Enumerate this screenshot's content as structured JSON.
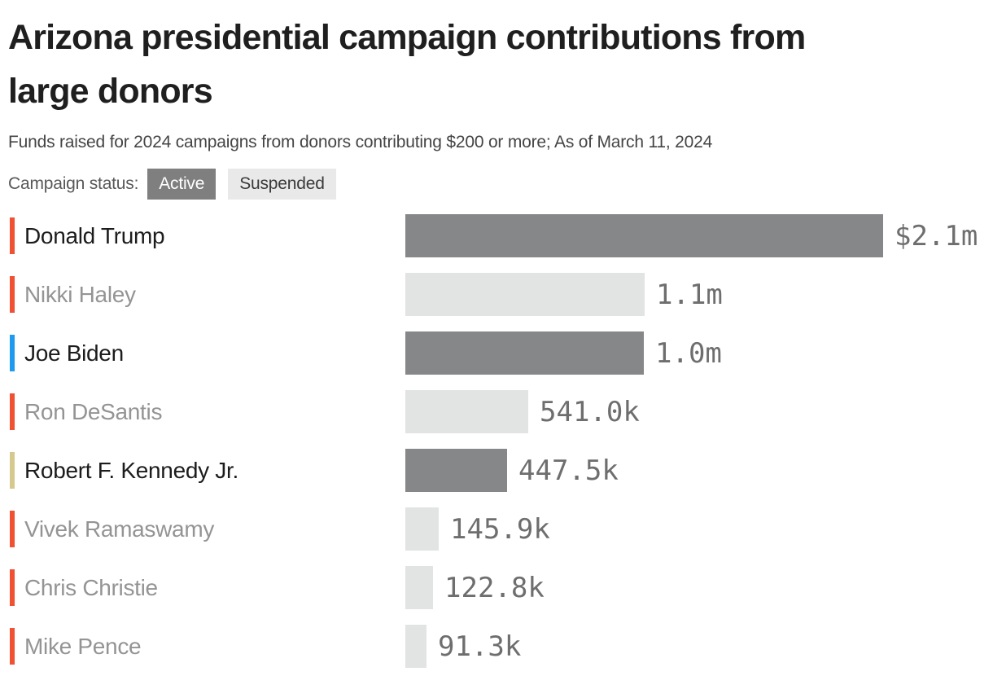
{
  "header": {
    "title": "Arizona presidential campaign contributions from large donors",
    "title_lines": [
      "Arizona presidential campaign contributions from",
      "large donors"
    ],
    "subtitle": "Funds raised for 2024 campaigns from donors contributing $200 or more; As of March 11, 2024"
  },
  "legend": {
    "label": "Campaign status:",
    "active_label": "Active",
    "suspended_label": "Suspended"
  },
  "colors": {
    "party": {
      "republican": "#f05133",
      "democrat": "#1e9bf0",
      "independent": "#d6c98e"
    },
    "bar_active": "#868788",
    "bar_suspended": "#e2e3e3",
    "name_active": "#1c1c1c",
    "name_suspended": "#949494",
    "value_label": "#6e6e6e",
    "badge_active_bg": "#7f7f7f",
    "badge_active_text": "#ffffff",
    "badge_suspended_bg": "#e9e9e9",
    "badge_suspended_text": "#3a3a3a"
  },
  "chart_data": {
    "type": "bar",
    "orientation": "horizontal",
    "title": "Arizona presidential campaign contributions from large donors",
    "subtitle": "Funds raised for 2024 campaigns from donors contributing $200 or more; As of March 11, 2024",
    "unit": "USD",
    "xlim": [
      0,
      2100000
    ],
    "grid": false,
    "legend_position": "top-left",
    "legend_entries": [
      "Active",
      "Suspended"
    ],
    "rows": [
      {
        "name": "Donald Trump",
        "party": "republican",
        "status": "active",
        "value": 2100000,
        "label": "$2.1m"
      },
      {
        "name": "Nikki Haley",
        "party": "republican",
        "status": "suspended",
        "value": 1052000,
        "label": "1.1m"
      },
      {
        "name": "Joe Biden",
        "party": "democrat",
        "status": "active",
        "value": 1048000,
        "label": "1.0m"
      },
      {
        "name": "Ron DeSantis",
        "party": "republican",
        "status": "suspended",
        "value": 541000,
        "label": "541.0k"
      },
      {
        "name": "Robert F. Kennedy Jr.",
        "party": "independent",
        "status": "active",
        "value": 447500,
        "label": "447.5k"
      },
      {
        "name": "Vivek Ramaswamy",
        "party": "republican",
        "status": "suspended",
        "value": 145900,
        "label": "145.9k"
      },
      {
        "name": "Chris Christie",
        "party": "republican",
        "status": "suspended",
        "value": 122800,
        "label": "122.8k"
      },
      {
        "name": "Mike Pence",
        "party": "republican",
        "status": "suspended",
        "value": 91300,
        "label": "91.3k"
      }
    ]
  }
}
